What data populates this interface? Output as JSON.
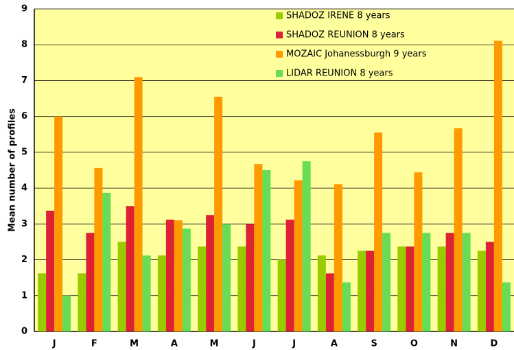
{
  "chart_data": {
    "type": "bar",
    "y_label": "Mean number of profiles",
    "categories": [
      "J",
      "F",
      "M",
      "A",
      "M",
      "J",
      "J",
      "A",
      "S",
      "O",
      "N",
      "D"
    ],
    "series": [
      {
        "name": "SHADOZ IRENE 8 years",
        "color": "#99cc00",
        "values": [
          1.62,
          1.62,
          2.5,
          2.12,
          2.37,
          2.37,
          2.0,
          2.12,
          2.25,
          2.37,
          2.37,
          2.25
        ]
      },
      {
        "name": "SHADOZ REUNION 8 years",
        "color": "#dd2233",
        "values": [
          3.37,
          2.75,
          3.5,
          3.12,
          3.25,
          3.0,
          3.12,
          1.62,
          2.25,
          2.37,
          2.75,
          2.5
        ]
      },
      {
        "name": "MOZAIC Johanessburgh 9 years",
        "color": "#ff9900",
        "values": [
          6.0,
          4.56,
          7.1,
          3.1,
          6.55,
          4.67,
          4.22,
          4.11,
          5.55,
          4.44,
          5.67,
          8.11
        ]
      },
      {
        "name": "LIDAR REUNION 8 years",
        "color": "#66dd55",
        "values": [
          1.0,
          3.87,
          2.12,
          2.87,
          3.0,
          4.5,
          4.75,
          1.37,
          2.75,
          2.75,
          2.75,
          1.37
        ]
      }
    ],
    "ylim": [
      0,
      9
    ],
    "yticks": [
      0,
      1,
      2,
      3,
      4,
      5,
      6,
      7,
      8,
      9
    ],
    "grid": true
  }
}
